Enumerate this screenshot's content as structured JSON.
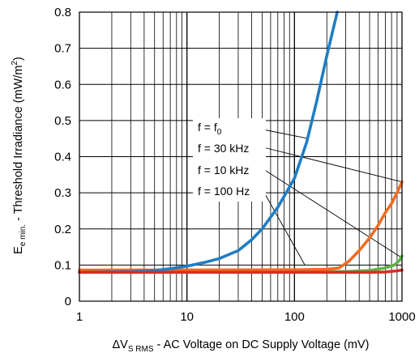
{
  "chart_data": {
    "type": "line",
    "x_scale": "log",
    "xlim": [
      1,
      1000
    ],
    "ylim": [
      0,
      0.8
    ],
    "grid": true,
    "x_ticks": [
      "1",
      "10",
      "100",
      "1000"
    ],
    "y_ticks": [
      "0",
      "0.1",
      "0.2",
      "0.3",
      "0.4",
      "0.5",
      "0.6",
      "0.7",
      "0.8"
    ],
    "xlabel": {
      "delta": "ΔV",
      "sub": "S RMS",
      "rest": " - AC Voltage on DC Supply Voltage (mV)"
    },
    "ylabel": {
      "main": "E",
      "sub": "e min.",
      "rest": " - Threshold Irradiance (mW/m",
      "sup": "2",
      "end": ")"
    },
    "annotations": [
      {
        "text": "f = f",
        "sub": "0",
        "series": "f0"
      },
      {
        "text": "f = 30 kHz",
        "sub": "",
        "series": "30k"
      },
      {
        "text": "f = 10 kHz",
        "sub": "",
        "series": "10k"
      },
      {
        "text": "f = 100 Hz",
        "sub": "",
        "series": "100"
      }
    ],
    "series": [
      {
        "id": "f0",
        "color": "#1f7dc4",
        "x": [
          1,
          3,
          5,
          7,
          10,
          15,
          20,
          30,
          40,
          50,
          70,
          100,
          130,
          160,
          200,
          250
        ],
        "y": [
          0.08,
          0.082,
          0.085,
          0.09,
          0.097,
          0.108,
          0.118,
          0.14,
          0.17,
          0.2,
          0.26,
          0.34,
          0.44,
          0.55,
          0.68,
          0.8
        ]
      },
      {
        "id": "30k",
        "color": "#f26b21",
        "x": [
          1,
          100,
          200,
          260,
          320,
          400,
          500,
          600,
          700,
          800,
          900,
          1000
        ],
        "y": [
          0.086,
          0.087,
          0.088,
          0.092,
          0.11,
          0.14,
          0.175,
          0.21,
          0.245,
          0.27,
          0.3,
          0.33
        ]
      },
      {
        "id": "10k",
        "color": "#5bb546",
        "x": [
          1,
          300,
          500,
          700,
          850,
          950,
          1000
        ],
        "y": [
          0.082,
          0.082,
          0.085,
          0.092,
          0.1,
          0.113,
          0.125
        ]
      },
      {
        "id": "100",
        "color": "#d62e27",
        "x": [
          1,
          100,
          500,
          700,
          900,
          1000
        ],
        "y": [
          0.08,
          0.08,
          0.08,
          0.081,
          0.084,
          0.086
        ]
      }
    ]
  }
}
